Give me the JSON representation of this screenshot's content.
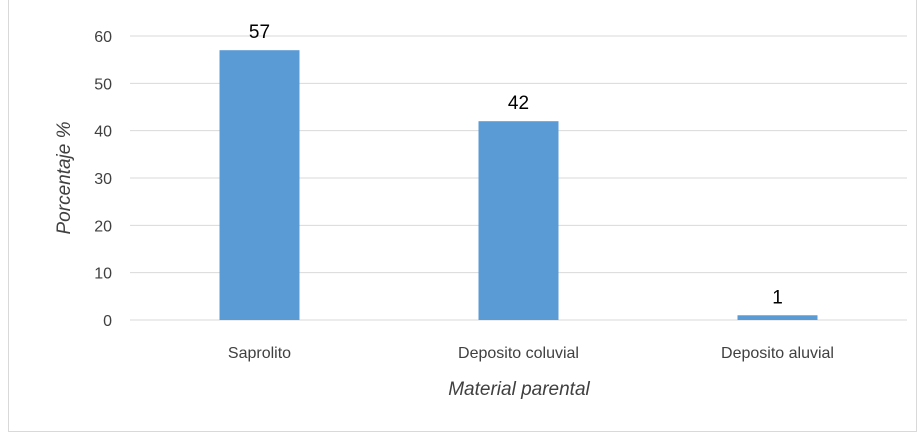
{
  "chart_data": {
    "type": "bar",
    "categories": [
      "Saprolito",
      "Deposito coluvial",
      "Deposito aluvial"
    ],
    "values": [
      57,
      42,
      1
    ],
    "data_labels": [
      "57",
      "42",
      "1"
    ],
    "xlabel": "Material parental",
    "ylabel": "Porcentaje %",
    "ylim": [
      0,
      60
    ],
    "yticks": [
      "0",
      "10",
      "20",
      "30",
      "40",
      "50",
      "60"
    ],
    "grid": true,
    "legend": "none",
    "bar_color": "#5b9bd5",
    "grid_color": "#d9d9d9"
  }
}
